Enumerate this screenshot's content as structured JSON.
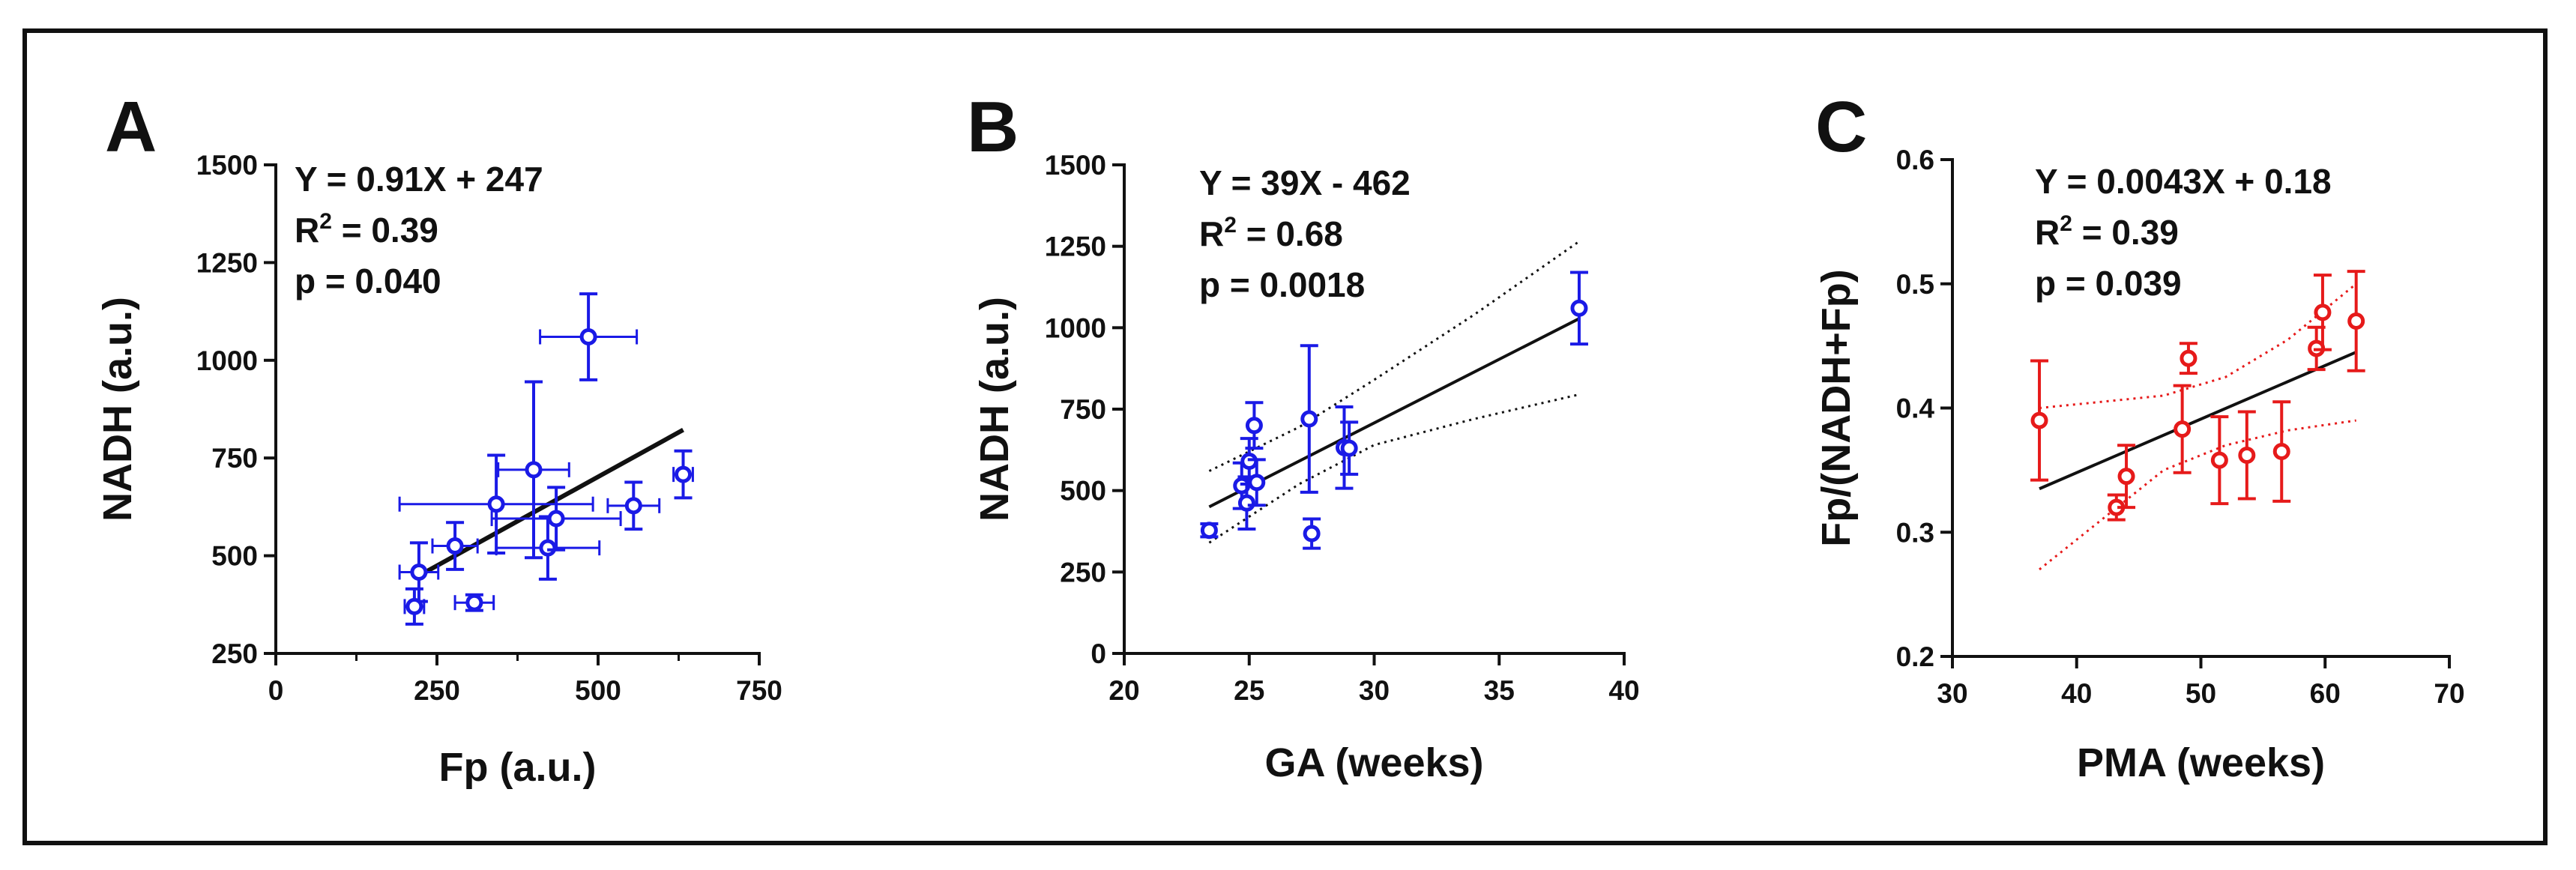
{
  "figure_title": "",
  "chart_data": [
    {
      "panel_letter": "A",
      "type": "scatter",
      "title": "",
      "xlabel": "Fp (a.u.)",
      "ylabel": "NADH (a.u.)",
      "xlim": [
        0,
        750
      ],
      "ylim": [
        250,
        1500
      ],
      "xticks": [
        0,
        250,
        500,
        750
      ],
      "yticks": [
        250,
        500,
        750,
        1000,
        1250,
        1500
      ],
      "xtick_labels": [
        "0",
        "250",
        "500",
        "750"
      ],
      "ytick_labels": [
        "250",
        "500",
        "750",
        "1000",
        "1250",
        "1500"
      ],
      "minor_xticks": [
        125,
        375,
        625
      ],
      "annotation_lines": [
        "Y = 0.91X + 247",
        "R",
        "2",
        " = 0.39",
        "p = 0.040"
      ],
      "color": "#1a1ae6",
      "points": [
        {
          "x": 222,
          "y": 458,
          "xerr": 30,
          "yerr": 75
        },
        {
          "x": 215,
          "y": 370,
          "xerr": 15,
          "yerr": 45
        },
        {
          "x": 278,
          "y": 525,
          "xerr": 35,
          "yerr": 60
        },
        {
          "x": 308,
          "y": 380,
          "xerr": 30,
          "yerr": 20
        },
        {
          "x": 342,
          "y": 632,
          "xerr": 150,
          "yerr": 125
        },
        {
          "x": 400,
          "y": 720,
          "xerr": 55,
          "yerr": 225
        },
        {
          "x": 422,
          "y": 520,
          "xerr": 80,
          "yerr": 80
        },
        {
          "x": 435,
          "y": 595,
          "xerr": 100,
          "yerr": 80
        },
        {
          "x": 485,
          "y": 1060,
          "xerr": 75,
          "yerr": 110
        },
        {
          "x": 555,
          "y": 628,
          "xerr": 40,
          "yerr": 60
        },
        {
          "x": 632,
          "y": 708,
          "xerr": 15,
          "yerr": 60
        }
      ],
      "fit": {
        "x": [
          222,
          632
        ],
        "y": [
          449,
          822
        ]
      },
      "confidence_band": null
    },
    {
      "panel_letter": "B",
      "type": "scatter",
      "title": "",
      "xlabel": "GA (weeks)",
      "ylabel": "NADH (a.u.)",
      "xlim": [
        20,
        40
      ],
      "ylim": [
        0,
        1500
      ],
      "xticks": [
        20,
        25,
        30,
        35,
        40
      ],
      "yticks": [
        0,
        250,
        500,
        750,
        1000,
        1250,
        1500
      ],
      "xtick_labels": [
        "20",
        "25",
        "30",
        "35",
        "40"
      ],
      "ytick_labels": [
        "0",
        "250",
        "500",
        "750",
        "1000",
        "1250",
        "1500"
      ],
      "minor_xticks": [],
      "annotation_lines": [
        "Y = 39X - 462",
        "R",
        "2",
        " = 0.68",
        "p = 0.0018"
      ],
      "color": "#1a1ae6",
      "points": [
        {
          "x": 23.4,
          "y": 378,
          "xerr": 0,
          "yerr": 20
        },
        {
          "x": 24.7,
          "y": 515,
          "xerr": 0,
          "yerr": 70
        },
        {
          "x": 24.9,
          "y": 462,
          "xerr": 0,
          "yerr": 80
        },
        {
          "x": 25.0,
          "y": 590,
          "xerr": 0,
          "yerr": 70
        },
        {
          "x": 25.2,
          "y": 700,
          "xerr": 0,
          "yerr": 70
        },
        {
          "x": 25.3,
          "y": 525,
          "xerr": 0,
          "yerr": 70
        },
        {
          "x": 27.4,
          "y": 720,
          "xerr": 0,
          "yerr": 225
        },
        {
          "x": 27.5,
          "y": 368,
          "xerr": 0,
          "yerr": 45
        },
        {
          "x": 28.8,
          "y": 632,
          "xerr": 0,
          "yerr": 125
        },
        {
          "x": 29.0,
          "y": 630,
          "xerr": 0,
          "yerr": 80
        },
        {
          "x": 38.2,
          "y": 1060,
          "xerr": 0,
          "yerr": 110
        }
      ],
      "fit": {
        "x": [
          23.4,
          38.2
        ],
        "y": [
          450,
          1028
        ]
      },
      "confidence_band": {
        "x": [
          23.4,
          27,
          30,
          34,
          38.2
        ],
        "upper": [
          560,
          695,
          840,
          1040,
          1265
        ],
        "lower": [
          340,
          520,
          640,
          720,
          795
        ]
      }
    },
    {
      "panel_letter": "C",
      "type": "scatter",
      "title": "",
      "xlabel": "PMA (weeks)",
      "ylabel": "Fp/(NADH+Fp)",
      "xlim": [
        30,
        70
      ],
      "ylim": [
        0.2,
        0.6
      ],
      "xticks": [
        30,
        40,
        50,
        60,
        70
      ],
      "yticks": [
        0.2,
        0.3,
        0.4,
        0.5,
        0.6
      ],
      "xtick_labels": [
        "30",
        "40",
        "50",
        "60",
        "70"
      ],
      "ytick_labels": [
        "0.2",
        "0.3",
        "0.4",
        "0.5",
        "0.6"
      ],
      "minor_xticks": [],
      "annotation_lines": [
        "Y = 0.0043X + 0.18",
        "R",
        "2",
        " = 0.39",
        "p = 0.039"
      ],
      "color": "#e61a1a",
      "points": [
        {
          "x": 37.0,
          "y": 0.39,
          "xerr": 0,
          "yerr": 0.048
        },
        {
          "x": 43.2,
          "y": 0.32,
          "xerr": 0,
          "yerr": 0.01
        },
        {
          "x": 44.0,
          "y": 0.345,
          "xerr": 0,
          "yerr": 0.025
        },
        {
          "x": 48.5,
          "y": 0.383,
          "xerr": 0,
          "yerr": 0.035
        },
        {
          "x": 49.0,
          "y": 0.44,
          "xerr": 0,
          "yerr": 0.012
        },
        {
          "x": 51.5,
          "y": 0.358,
          "xerr": 0,
          "yerr": 0.035
        },
        {
          "x": 53.7,
          "y": 0.362,
          "xerr": 0,
          "yerr": 0.035
        },
        {
          "x": 56.5,
          "y": 0.365,
          "xerr": 0,
          "yerr": 0.04
        },
        {
          "x": 59.3,
          "y": 0.448,
          "xerr": 0,
          "yerr": 0.017
        },
        {
          "x": 59.8,
          "y": 0.477,
          "xerr": 0,
          "yerr": 0.03
        },
        {
          "x": 62.5,
          "y": 0.47,
          "xerr": 0,
          "yerr": 0.04
        }
      ],
      "fit": {
        "x": [
          37,
          62.5
        ],
        "y": [
          0.335,
          0.445
        ]
      },
      "confidence_band": {
        "x": [
          37,
          42,
          47,
          52,
          57,
          62.5
        ],
        "upper": [
          0.4,
          0.405,
          0.41,
          0.425,
          0.455,
          0.5
        ],
        "lower": [
          0.27,
          0.31,
          0.35,
          0.37,
          0.382,
          0.39
        ]
      }
    }
  ]
}
